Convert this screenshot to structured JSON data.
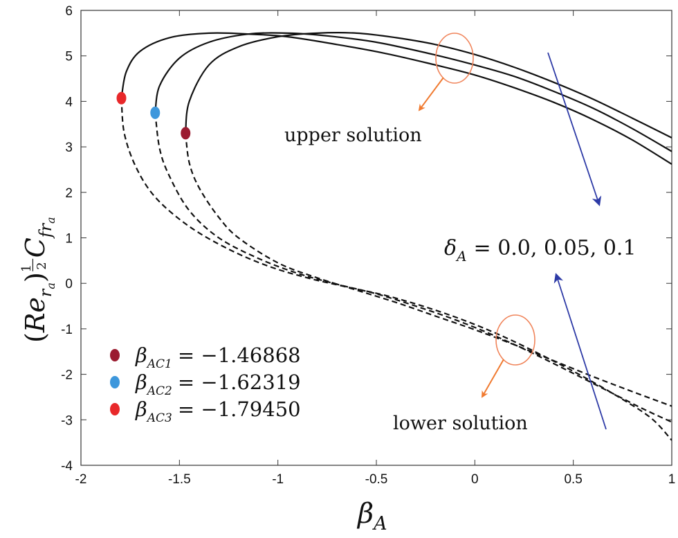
{
  "chart_data": {
    "type": "line",
    "xlabel_main": "β",
    "xlabel_sub": "A",
    "ylabel": "(Re_{r_a})^{1/2} C_{fr_a}",
    "xlim": [
      -2,
      1
    ],
    "ylim": [
      -4,
      6
    ],
    "xticks": [
      "-2",
      "-1.5",
      "-1",
      "-0.5",
      "0",
      "0.5",
      "1"
    ],
    "yticks": [
      "-4",
      "-3",
      "-2",
      "-1",
      "0",
      "1",
      "2",
      "3",
      "4",
      "5",
      "6"
    ],
    "annotations": {
      "upper": "upper solution",
      "lower": "lower solution",
      "delta_symbol": "δ",
      "delta_sub": "A",
      "delta_values": "= 0.0, 0.05, 0.1"
    },
    "series": [
      {
        "name": "δA = 0.0",
        "critical": -1.46868,
        "critical_value": 3.3,
        "upper": [
          [
            -1.46868,
            3.3
          ],
          [
            -1.45,
            4.0
          ],
          [
            -1.35,
            4.8
          ],
          [
            -1.2,
            5.2
          ],
          [
            -1.0,
            5.42
          ],
          [
            -0.8,
            5.5
          ],
          [
            -0.6,
            5.5
          ],
          [
            -0.4,
            5.4
          ],
          [
            -0.2,
            5.25
          ],
          [
            0.0,
            5.03
          ],
          [
            0.2,
            4.75
          ],
          [
            0.4,
            4.42
          ],
          [
            0.6,
            4.05
          ],
          [
            0.8,
            3.63
          ],
          [
            1.0,
            3.2
          ]
        ],
        "lower": [
          [
            -1.46868,
            3.3
          ],
          [
            -1.45,
            2.65
          ],
          [
            -1.4,
            2.1
          ],
          [
            -1.3,
            1.45
          ],
          [
            -1.2,
            1.0
          ],
          [
            -1.0,
            0.45
          ],
          [
            -0.8,
            0.12
          ],
          [
            -0.6,
            -0.15
          ],
          [
            -0.4,
            -0.42
          ],
          [
            -0.2,
            -0.72
          ],
          [
            0.0,
            -1.02
          ],
          [
            0.2,
            -1.35
          ],
          [
            0.4,
            -1.7
          ],
          [
            0.6,
            -2.05
          ],
          [
            0.8,
            -2.38
          ],
          [
            1.0,
            -2.7
          ]
        ]
      },
      {
        "name": "δA = 0.05",
        "critical": -1.62319,
        "critical_value": 3.75,
        "upper": [
          [
            -1.62319,
            3.75
          ],
          [
            -1.6,
            4.35
          ],
          [
            -1.5,
            4.95
          ],
          [
            -1.35,
            5.3
          ],
          [
            -1.15,
            5.48
          ],
          [
            -0.95,
            5.5
          ],
          [
            -0.75,
            5.44
          ],
          [
            -0.5,
            5.3
          ],
          [
            -0.2,
            5.02
          ],
          [
            0.0,
            4.8
          ],
          [
            0.2,
            4.55
          ],
          [
            0.4,
            4.22
          ],
          [
            0.6,
            3.85
          ],
          [
            0.8,
            3.4
          ],
          [
            1.0,
            2.9
          ]
        ],
        "lower": [
          [
            -1.62319,
            3.75
          ],
          [
            -1.6,
            2.95
          ],
          [
            -1.55,
            2.35
          ],
          [
            -1.45,
            1.6
          ],
          [
            -1.3,
            1.0
          ],
          [
            -1.1,
            0.55
          ],
          [
            -0.9,
            0.22
          ],
          [
            -0.7,
            -0.02
          ],
          [
            -0.5,
            -0.23
          ],
          [
            -0.3,
            -0.5
          ],
          [
            -0.1,
            -0.8
          ],
          [
            0.1,
            -1.15
          ],
          [
            0.3,
            -1.55
          ],
          [
            0.5,
            -1.98
          ],
          [
            0.7,
            -2.42
          ],
          [
            0.85,
            -2.75
          ],
          [
            1.0,
            -3.05
          ]
        ]
      },
      {
        "name": "δA = 0.1",
        "critical": -1.7945,
        "critical_value": 4.07,
        "upper": [
          [
            -1.7945,
            4.07
          ],
          [
            -1.77,
            4.65
          ],
          [
            -1.7,
            5.1
          ],
          [
            -1.55,
            5.4
          ],
          [
            -1.35,
            5.5
          ],
          [
            -1.15,
            5.48
          ],
          [
            -0.95,
            5.42
          ],
          [
            -0.7,
            5.25
          ],
          [
            -0.45,
            5.05
          ],
          [
            -0.2,
            4.8
          ],
          [
            0.0,
            4.58
          ],
          [
            0.2,
            4.3
          ],
          [
            0.4,
            3.98
          ],
          [
            0.6,
            3.6
          ],
          [
            0.8,
            3.15
          ],
          [
            1.0,
            2.62
          ]
        ],
        "lower": [
          [
            -1.7945,
            4.07
          ],
          [
            -1.78,
            3.3
          ],
          [
            -1.72,
            2.55
          ],
          [
            -1.62,
            1.88
          ],
          [
            -1.45,
            1.25
          ],
          [
            -1.25,
            0.75
          ],
          [
            -1.05,
            0.38
          ],
          [
            -0.85,
            0.12
          ],
          [
            -0.65,
            -0.08
          ],
          [
            -0.45,
            -0.27
          ],
          [
            -0.25,
            -0.52
          ],
          [
            -0.05,
            -0.82
          ],
          [
            0.15,
            -1.18
          ],
          [
            0.35,
            -1.6
          ],
          [
            0.55,
            -2.05
          ],
          [
            0.75,
            -2.55
          ],
          [
            0.9,
            -2.98
          ],
          [
            1.0,
            -3.45
          ]
        ]
      }
    ],
    "legend": [
      {
        "label_sub": "AC1",
        "value": "= −1.46868",
        "color": "#9b1b30"
      },
      {
        "label_sub": "AC2",
        "value": "= −1.62319",
        "color": "#3d97dc"
      },
      {
        "label_sub": "AC3",
        "value": "= −1.79450",
        "color": "#e8282a"
      }
    ],
    "legend_symbol": "β",
    "legend_placement": "bottom-left"
  },
  "colors": {
    "curve": "#111111",
    "ellipse": "#f0845a",
    "orange_arrow": "#f07a30",
    "blue_arrow": "#2d3aa6"
  }
}
